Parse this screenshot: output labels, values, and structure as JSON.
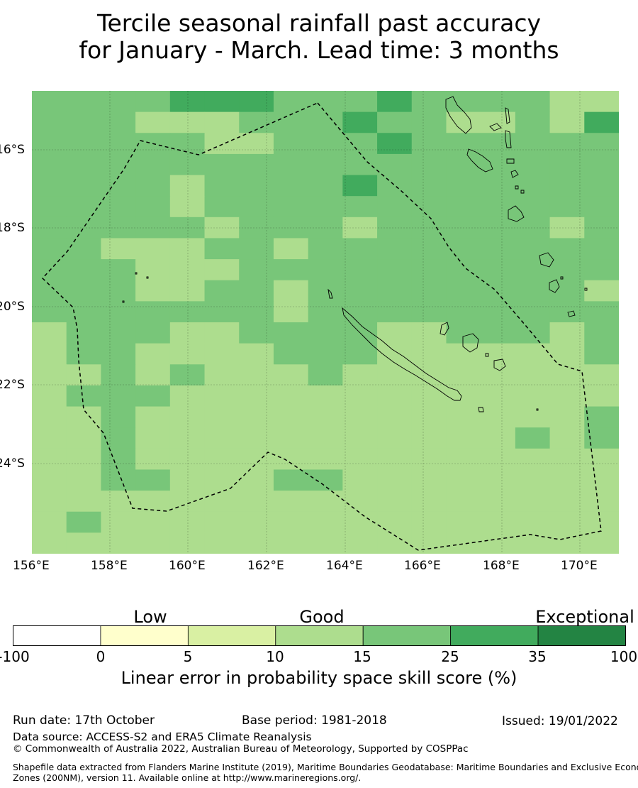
{
  "title": {
    "line1": "Tercile seasonal rainfall past accuracy",
    "line2": "for January - March. Lead time: 3 months"
  },
  "map": {
    "lon_range": [
      156,
      171
    ],
    "lat_range": [
      -26.5,
      -14.6
    ],
    "lon_ticks": [
      "156°E",
      "158°E",
      "160°E",
      "162°E",
      "164°E",
      "166°E",
      "168°E",
      "170°E"
    ],
    "lat_ticks": [
      "16°S",
      "18°S",
      "20°S",
      "22°S",
      "24°S"
    ],
    "gridlines": true,
    "boundary_style": "dashed",
    "skill_grid_description": "Linear error in probability space skill score bins per grid cell",
    "skill_grid_rows": [
      "44445554445444433",
      "44433344454433435",
      "44444334445444444",
      "44444444444444444",
      "44443444454444444",
      "44443444444444444",
      "44444344434444434",
      "44333443444444444",
      "44433344444444444",
      "44433443444444443",
      "44444443444444444",
      "34443344443344434",
      "34433334443333334",
      "33434333433333333",
      "34443333333333333",
      "33433333333333334",
      "33433333333333434",
      "33433333333333333",
      "33443334433333333",
      "33333333333333333",
      "34333333333333333",
      "33333333333333333"
    ]
  },
  "colorbar": {
    "categories": [
      {
        "label": "Low",
        "pos": 0.158
      },
      {
        "label": "Good",
        "pos": 0.495
      },
      {
        "label": "Exceptional",
        "pos": 0.95
      }
    ],
    "ticks": [
      "-100",
      "0",
      "5",
      "10",
      "15",
      "25",
      "35",
      "100"
    ],
    "colors": [
      "#ffffff",
      "#ffffcc",
      "#d9f0a3",
      "#addd8e",
      "#78c679",
      "#41ab5d",
      "#238443"
    ],
    "label": "Linear error in probability space skill score (%)"
  },
  "footer": {
    "run_date": "Run date: 17th October",
    "base_period": "Base period: 1981-2018",
    "issued": "Issued: 19/01/2022",
    "data_source": "Data source: ACCESS-S2 and ERA5 Climate Reanalysis",
    "copyright": "© Commonwealth of Australia 2022, Australian Bureau of Meteorology, Supported by COSPPac",
    "shapefile_line1": "Shapefile data extracted from Flanders Marine Institute (2019), Maritime Boundaries Geodatabase: Maritime Boundaries and Exclusive Economic",
    "shapefile_line2": "Zones (200NM), version 11. Available online at http://www.marineregions.org/."
  }
}
